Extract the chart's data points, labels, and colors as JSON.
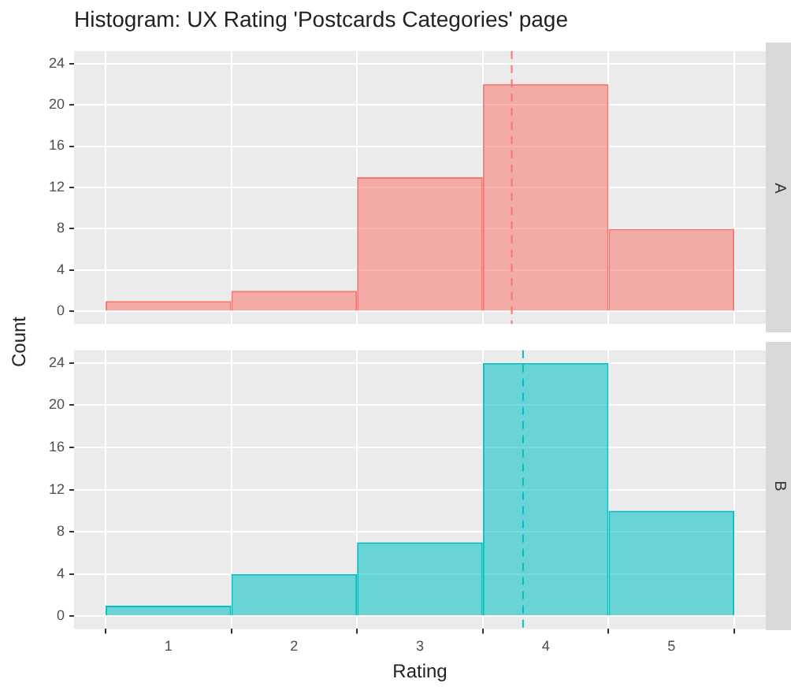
{
  "chart_data": [
    {
      "type": "histogram",
      "title": "Histogram: UX Rating 'Postcards Categories' page",
      "subtitle": "A",
      "ylabel": "Count",
      "bins": [
        0.5,
        1.5,
        2.5,
        3.5,
        4.5,
        5.5
      ],
      "values": [
        1,
        2,
        13,
        22,
        8
      ],
      "color": "#f8766d",
      "xlim": [
        0.25,
        5.75
      ],
      "xticks": [
        1,
        2,
        3,
        4,
        5
      ],
      "ylim": [
        -1.2,
        25.2
      ],
      "yticks": [
        0,
        4,
        8,
        12,
        16,
        20,
        24
      ],
      "tick_labels": "y",
      "grid": true,
      "ref_lines": [
        {
          "axis": "x",
          "value": 3.73,
          "color": "#f8766d",
          "line_style": "dashed"
        }
      ]
    },
    {
      "type": "histogram",
      "subtitle": "B",
      "xlabel": "Rating",
      "bins": [
        0.5,
        1.5,
        2.5,
        3.5,
        4.5,
        5.5
      ],
      "values": [
        1,
        4,
        7,
        24,
        10
      ],
      "color": "#00bfc4",
      "xlim": [
        0.25,
        5.75
      ],
      "xticks": [
        1,
        2,
        3,
        4,
        5
      ],
      "ylim": [
        -1.2,
        25.2
      ],
      "yticks": [
        0,
        4,
        8,
        12,
        16,
        20,
        24
      ],
      "grid": true,
      "ref_lines": [
        {
          "axis": "x",
          "value": 3.82,
          "color": "#00bfc4",
          "line_style": "dashed"
        }
      ]
    }
  ]
}
